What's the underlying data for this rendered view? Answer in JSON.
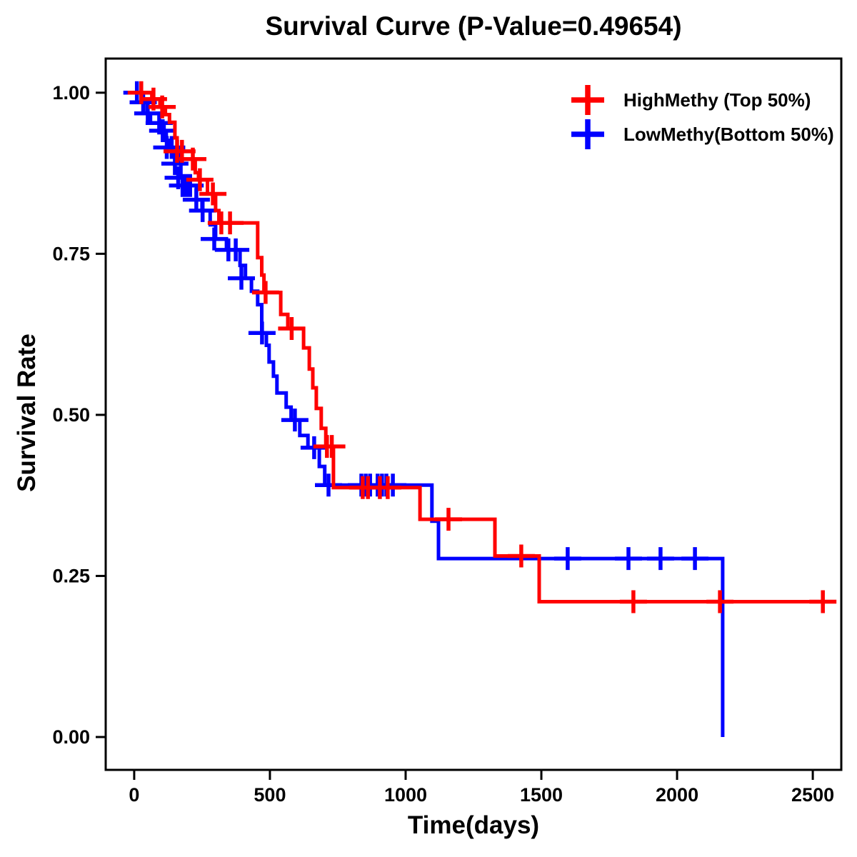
{
  "chart_data": {
    "type": "line",
    "subtype": "kaplan-meier-step",
    "title": "Survival Curve (P-Value=0.49654)",
    "p_value": "0.49654",
    "xlabel": "Time(days)",
    "ylabel": "Survival Rate",
    "x_ticks": [
      0,
      500,
      1000,
      1500,
      2000,
      2500
    ],
    "y_ticks": [
      0.0,
      0.25,
      0.5,
      0.75,
      1.0
    ],
    "y_tick_labels": [
      "0.00",
      "0.25",
      "0.50",
      "0.75",
      "1.00"
    ],
    "xlim": [
      -105,
      2605
    ],
    "ylim": [
      -0.051,
      1.053
    ],
    "grid": false,
    "legend_position": "top-right",
    "legend": [
      {
        "label": "HighMethy (Top 50%)",
        "color": "#FF0000"
      },
      {
        "label": "LowMethy(Bottom 50%)",
        "color": "#0000FF"
      }
    ],
    "series": [
      {
        "name": "LowMethy(Bottom 50%)",
        "color": "#0000FF",
        "end_t": 2168,
        "steps": [
          [
            0,
            1.0
          ],
          [
            30,
            0.985
          ],
          [
            47,
            0.968
          ],
          [
            60,
            0.953
          ],
          [
            110,
            0.941
          ],
          [
            118,
            0.926
          ],
          [
            128,
            0.915
          ],
          [
            163,
            0.89
          ],
          [
            172,
            0.868
          ],
          [
            182,
            0.856
          ],
          [
            229,
            0.834
          ],
          [
            250,
            0.817
          ],
          [
            280,
            0.795
          ],
          [
            300,
            0.773
          ],
          [
            340,
            0.756
          ],
          [
            390,
            0.732
          ],
          [
            410,
            0.712
          ],
          [
            432,
            0.692
          ],
          [
            455,
            0.671
          ],
          [
            470,
            0.627
          ],
          [
            487,
            0.608
          ],
          [
            497,
            0.582
          ],
          [
            513,
            0.56
          ],
          [
            526,
            0.534
          ],
          [
            560,
            0.512
          ],
          [
            578,
            0.492
          ],
          [
            610,
            0.468
          ],
          [
            640,
            0.449
          ],
          [
            682,
            0.42
          ],
          [
            702,
            0.391
          ],
          [
            1097,
            0.335
          ],
          [
            1121,
            0.277
          ],
          [
            2168,
            0.0
          ]
        ],
        "censors": [
          [
            10,
            1.0
          ],
          [
            33,
            0.985
          ],
          [
            50,
            0.968
          ],
          [
            92,
            0.953
          ],
          [
            105,
            0.941
          ],
          [
            120,
            0.915
          ],
          [
            138,
            0.915
          ],
          [
            150,
            0.89
          ],
          [
            162,
            0.868
          ],
          [
            178,
            0.856
          ],
          [
            192,
            0.856
          ],
          [
            206,
            0.856
          ],
          [
            229,
            0.834
          ],
          [
            252,
            0.817
          ],
          [
            295,
            0.773
          ],
          [
            347,
            0.756
          ],
          [
            374,
            0.756
          ],
          [
            395,
            0.712
          ],
          [
            471,
            0.627
          ],
          [
            592,
            0.492
          ],
          [
            663,
            0.449
          ],
          [
            716,
            0.391
          ],
          [
            837,
            0.391
          ],
          [
            853,
            0.391
          ],
          [
            869,
            0.391
          ],
          [
            897,
            0.391
          ],
          [
            913,
            0.391
          ],
          [
            929,
            0.391
          ],
          [
            953,
            0.391
          ],
          [
            1597,
            0.277
          ],
          [
            1821,
            0.277
          ],
          [
            1939,
            0.277
          ],
          [
            2066,
            0.277
          ]
        ]
      },
      {
        "name": "HighMethy (Top 50%)",
        "color": "#FF0000",
        "end_t": 2576,
        "steps": [
          [
            0,
            1.0
          ],
          [
            65,
            0.99
          ],
          [
            95,
            0.978
          ],
          [
            115,
            0.966
          ],
          [
            130,
            0.954
          ],
          [
            150,
            0.93
          ],
          [
            158,
            0.909
          ],
          [
            216,
            0.897
          ],
          [
            225,
            0.876
          ],
          [
            237,
            0.865
          ],
          [
            270,
            0.843
          ],
          [
            300,
            0.817
          ],
          [
            312,
            0.798
          ],
          [
            455,
            0.744
          ],
          [
            470,
            0.717
          ],
          [
            478,
            0.69
          ],
          [
            540,
            0.656
          ],
          [
            566,
            0.634
          ],
          [
            624,
            0.604
          ],
          [
            645,
            0.571
          ],
          [
            658,
            0.542
          ],
          [
            671,
            0.51
          ],
          [
            689,
            0.479
          ],
          [
            706,
            0.451
          ],
          [
            734,
            0.387
          ],
          [
            1053,
            0.338
          ],
          [
            1329,
            0.281
          ],
          [
            1492,
            0.21
          ]
        ],
        "censors": [
          [
            26,
            1.0
          ],
          [
            71,
            0.99
          ],
          [
            103,
            0.978
          ],
          [
            158,
            0.909
          ],
          [
            176,
            0.909
          ],
          [
            216,
            0.897
          ],
          [
            242,
            0.865
          ],
          [
            290,
            0.843
          ],
          [
            321,
            0.798
          ],
          [
            353,
            0.798
          ],
          [
            484,
            0.69
          ],
          [
            580,
            0.634
          ],
          [
            710,
            0.451
          ],
          [
            728,
            0.451
          ],
          [
            842,
            0.387
          ],
          [
            861,
            0.387
          ],
          [
            905,
            0.387
          ],
          [
            934,
            0.387
          ],
          [
            1158,
            0.338
          ],
          [
            1426,
            0.281
          ],
          [
            1839,
            0.21
          ],
          [
            2158,
            0.21
          ],
          [
            2537,
            0.21
          ]
        ]
      }
    ]
  }
}
